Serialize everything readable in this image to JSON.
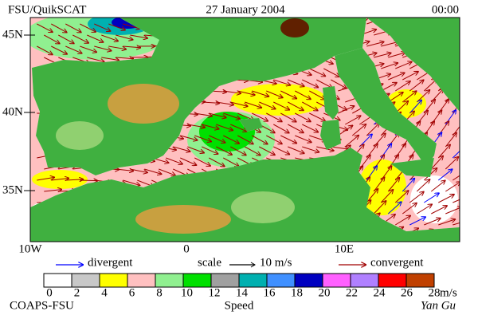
{
  "header": {
    "title": "FSU/QuikSCAT",
    "date": "27 January 2004",
    "time": "00:00"
  },
  "map": {
    "lat_labels": [
      "45N",
      "40N",
      "35N"
    ],
    "lon_labels": [
      "10W",
      "0",
      "10E"
    ]
  },
  "legend": {
    "divergent": "divergent",
    "scale": "scale",
    "scale_value": "10 m/s",
    "convergent": "convergent",
    "divergent_color": "#0000ff",
    "convergent_color": "#a00000"
  },
  "colorbar": {
    "ticks": [
      0,
      2,
      4,
      6,
      8,
      10,
      12,
      14,
      16,
      18,
      20,
      22,
      24,
      26,
      28
    ],
    "colors": [
      "#ffffff",
      "#c8c8c8",
      "#ffff00",
      "#ffc0c0",
      "#90f090",
      "#00e000",
      "#a0a0a0",
      "#00b0b0",
      "#4090ff",
      "#0000c0",
      "#ff60ff",
      "#b080ff",
      "#ff0000",
      "#c04000"
    ],
    "unit": "m/s",
    "label": "Speed"
  },
  "footer": {
    "left": "COAPS-FSU",
    "right": "Yan Gu"
  }
}
